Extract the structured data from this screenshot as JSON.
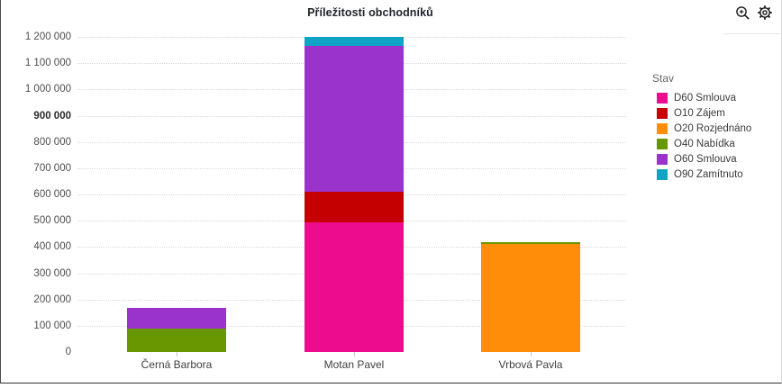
{
  "panel": {
    "title": "Příležitosti obchodníků"
  },
  "toolbar": {
    "icons": [
      "zoom-in-icon",
      "settings-gear-icon"
    ]
  },
  "legend": {
    "title": "Stav"
  },
  "chart_data": {
    "type": "bar",
    "subtype": "stacked-vertical",
    "title": "Příležitosti obchodníků",
    "categories": [
      "Černá Barbora",
      "Motan Pavel",
      "Vrbová Pavla"
    ],
    "series": [
      {
        "name": "D60 Smlouva",
        "color": "#ee0c8e",
        "values": [
          0,
          495000,
          0
        ]
      },
      {
        "name": "O10 Zájem",
        "color": "#c40000",
        "values": [
          0,
          115000,
          0
        ]
      },
      {
        "name": "O20 Rozjednáno",
        "color": "#ff8d0a",
        "values": [
          0,
          0,
          410000
        ]
      },
      {
        "name": "O40 Nabídka",
        "color": "#689702",
        "values": [
          88000,
          0,
          7000
        ]
      },
      {
        "name": "O60 Smlouva",
        "color": "#9a33cc",
        "values": [
          80000,
          555000,
          0
        ]
      },
      {
        "name": "O90 Zamítnuto",
        "color": "#0fa3c5",
        "values": [
          0,
          35000,
          0
        ]
      }
    ],
    "category_totals": [
      168000,
      1200000,
      417000
    ],
    "ylim": [
      0,
      1200000
    ],
    "ytick_step": 100000,
    "yticks": [
      "0",
      "100 000",
      "200 000",
      "300 000",
      "400 000",
      "500 000",
      "600 000",
      "700 000",
      "800 000",
      "900 000",
      "1 000 000",
      "1 100 000",
      "1 200 000"
    ],
    "bold_tick": "900 000",
    "legend_title": "Stav",
    "legend_position": "right",
    "grid": "horizontal-dotted",
    "grid_color": "#d8d8d8"
  }
}
